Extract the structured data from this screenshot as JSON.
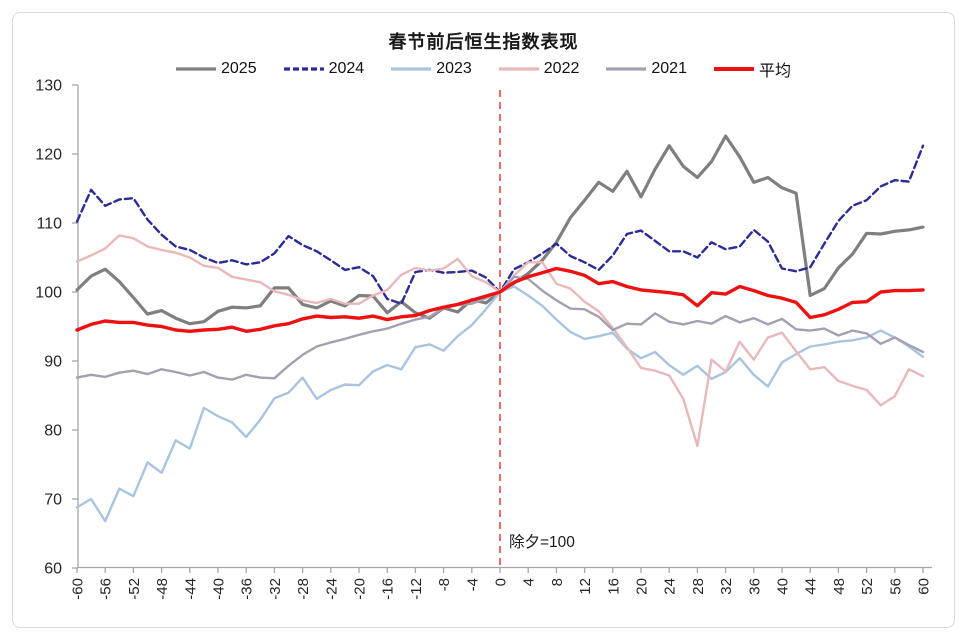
{
  "chart_data": {
    "type": "line",
    "title": "春节前后恒生指数表现",
    "xlabel": "",
    "ylabel": "",
    "x_description": "trading days relative to Chinese New Year Eve",
    "x_start": -60,
    "x_step": 2,
    "x": [
      -60,
      -58,
      -56,
      -54,
      -52,
      -50,
      -48,
      -46,
      -44,
      -42,
      -40,
      -38,
      -36,
      -34,
      -32,
      -30,
      -28,
      -26,
      -24,
      -22,
      -20,
      -18,
      -16,
      -14,
      -12,
      -10,
      -8,
      -6,
      -4,
      -2,
      0,
      2,
      4,
      6,
      8,
      10,
      12,
      14,
      16,
      18,
      20,
      22,
      24,
      26,
      28,
      30,
      32,
      34,
      36,
      38,
      40,
      42,
      44,
      46,
      48,
      50,
      52,
      54,
      56,
      58,
      60
    ],
    "xtick_step": 4,
    "ylim": [
      60,
      130
    ],
    "yticks": [
      60,
      70,
      80,
      90,
      100,
      110,
      120,
      130
    ],
    "grid": false,
    "legend_position": "top",
    "axis_color": "#a6a6a6",
    "tick_label_color": "#262626",
    "reference_line": {
      "x": 0,
      "color": "#e85050",
      "style": "dashed"
    },
    "annotation": {
      "text": "除夕=100",
      "color": "#1a1a1a"
    },
    "series": [
      {
        "name": "2025",
        "color": "#7f7f7f",
        "width": 3.2,
        "dash": "",
        "values": [
          100.3,
          102.3,
          103.3,
          101.5,
          99.2,
          96.8,
          97.3,
          96.2,
          95.4,
          95.7,
          97.2,
          97.8,
          97.7,
          98.0,
          100.6,
          100.6,
          98.2,
          97.7,
          98.7,
          98.0,
          99.5,
          99.4,
          97.0,
          98.6,
          97.0,
          96.2,
          97.7,
          97.1,
          98.9,
          98.4,
          100.0,
          101.3,
          102.7,
          104.6,
          107.2,
          110.8,
          113.3,
          115.9,
          114.6,
          117.5,
          113.8,
          117.8,
          121.2,
          118.2,
          116.6,
          118.9,
          122.6,
          119.6,
          115.9,
          116.6,
          115.1,
          114.3,
          99.5,
          100.5,
          103.5,
          105.5,
          108.5,
          108.4,
          108.8,
          109.0,
          109.4
        ]
      },
      {
        "name": "2024",
        "color": "#2b2b96",
        "width": 2.4,
        "dash": "7 4",
        "values": [
          110.2,
          114.8,
          112.5,
          113.4,
          113.6,
          110.5,
          108.3,
          106.6,
          106.1,
          105.0,
          104.2,
          104.6,
          104.0,
          104.3,
          105.6,
          108.1,
          106.8,
          105.9,
          104.6,
          103.2,
          103.6,
          102.3,
          99.0,
          98.3,
          102.9,
          103.2,
          102.8,
          102.9,
          103.1,
          102.1,
          100.0,
          103.3,
          104.3,
          105.6,
          107.0,
          105.2,
          104.3,
          103.2,
          105.3,
          108.4,
          108.9,
          107.4,
          105.9,
          105.9,
          105.0,
          107.2,
          106.2,
          106.6,
          109.0,
          107.3,
          103.4,
          103.0,
          103.6,
          107.0,
          110.3,
          112.5,
          113.3,
          115.3,
          116.2,
          116.0,
          121.2
        ]
      },
      {
        "name": "2023",
        "color": "#a9c4de",
        "width": 2.4,
        "dash": "",
        "values": [
          68.8,
          70.0,
          66.8,
          71.5,
          70.4,
          75.3,
          73.8,
          78.5,
          77.3,
          83.2,
          82.0,
          81.1,
          79.0,
          81.5,
          84.6,
          85.4,
          87.6,
          84.5,
          85.8,
          86.6,
          86.5,
          88.5,
          89.4,
          88.8,
          92.0,
          92.4,
          91.5,
          93.6,
          95.2,
          97.5,
          100.0,
          100.8,
          99.5,
          98.0,
          96.0,
          94.2,
          93.2,
          93.6,
          94.1,
          91.8,
          90.4,
          91.3,
          89.4,
          88.0,
          89.3,
          87.4,
          88.4,
          90.4,
          88.0,
          86.3,
          89.8,
          91.0,
          92.1,
          92.4,
          92.8,
          93.0,
          93.4,
          94.4,
          93.4,
          92.1,
          90.6
        ]
      },
      {
        "name": "2022",
        "color": "#e9b8ba",
        "width": 2.4,
        "dash": "",
        "values": [
          104.4,
          105.3,
          106.3,
          108.2,
          107.8,
          106.6,
          106.1,
          105.7,
          105.0,
          103.8,
          103.5,
          102.2,
          101.8,
          101.4,
          100.1,
          99.6,
          98.8,
          98.4,
          99.0,
          98.3,
          98.3,
          99.5,
          100.3,
          102.5,
          103.5,
          103.1,
          103.4,
          104.8,
          102.3,
          101.4,
          100.0,
          102.4,
          104.3,
          104.3,
          101.2,
          100.5,
          98.6,
          97.2,
          94.8,
          92.0,
          89.0,
          88.6,
          87.9,
          84.5,
          77.7,
          90.2,
          88.5,
          92.8,
          90.2,
          93.4,
          94.1,
          91.4,
          88.8,
          89.1,
          87.1,
          86.4,
          85.8,
          83.6,
          84.9,
          88.8,
          87.8
        ]
      },
      {
        "name": "2021",
        "color": "#a59fb2",
        "width": 2.4,
        "dash": "",
        "values": [
          87.6,
          88.0,
          87.7,
          88.3,
          88.6,
          88.1,
          88.8,
          88.4,
          87.9,
          88.4,
          87.6,
          87.3,
          88.0,
          87.6,
          87.5,
          89.3,
          90.9,
          92.1,
          92.7,
          93.2,
          93.8,
          94.3,
          94.7,
          95.4,
          96.0,
          96.4,
          97.7,
          98.1,
          98.3,
          99.1,
          100.0,
          102.2,
          101.9,
          100.2,
          98.8,
          97.6,
          97.5,
          96.4,
          94.5,
          95.4,
          95.3,
          96.9,
          95.7,
          95.3,
          95.8,
          95.4,
          96.5,
          95.6,
          96.2,
          95.3,
          96.1,
          94.6,
          94.4,
          94.7,
          93.7,
          94.4,
          94.0,
          92.5,
          93.4,
          92.3,
          91.3
        ]
      },
      {
        "name": "平均",
        "color": "#ed1111",
        "width": 3.4,
        "dash": "",
        "values": [
          94.5,
          95.3,
          95.8,
          95.6,
          95.6,
          95.2,
          95.0,
          94.5,
          94.3,
          94.5,
          94.6,
          94.9,
          94.3,
          94.6,
          95.1,
          95.4,
          96.1,
          96.5,
          96.3,
          96.4,
          96.2,
          96.5,
          96.0,
          96.4,
          96.6,
          97.3,
          97.8,
          98.2,
          98.8,
          99.4,
          100.0,
          101.4,
          102.2,
          102.8,
          103.4,
          103.0,
          102.4,
          101.2,
          101.5,
          100.8,
          100.3,
          100.1,
          99.9,
          99.6,
          98.0,
          99.9,
          99.7,
          100.8,
          100.2,
          99.5,
          99.1,
          98.5,
          96.3,
          96.7,
          97.5,
          98.5,
          98.6,
          100.0,
          100.2,
          100.2,
          100.3
        ]
      }
    ]
  }
}
